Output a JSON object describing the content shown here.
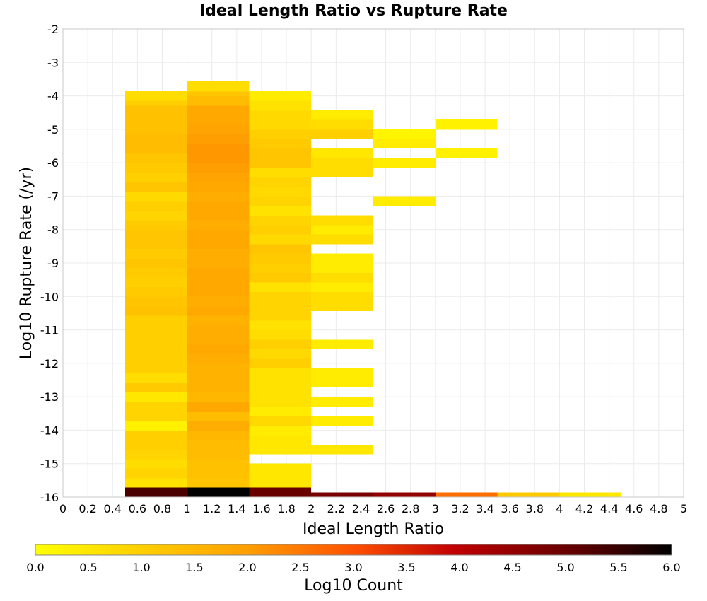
{
  "chart_data": {
    "type": "heatmap",
    "title": "Ideal Length Ratio vs Rupture Rate",
    "xlabel": "Ideal Length Ratio",
    "ylabel": "Log10 Rupture Rate (/yr)",
    "xlim": [
      0,
      5
    ],
    "ylim": [
      -16,
      -2
    ],
    "x_bin_width": 0.5,
    "y_bin_height": 0.2857,
    "x_ticks": [
      "0",
      "0.2",
      "0.4",
      "0.6",
      "0.8",
      "1",
      "1.2",
      "1.4",
      "1.6",
      "1.8",
      "2",
      "2.2",
      "2.4",
      "2.6",
      "2.8",
      "3",
      "3.2",
      "3.4",
      "3.6",
      "3.8",
      "4",
      "4.2",
      "4.4",
      "4.6",
      "4.8",
      "5"
    ],
    "y_ticks": [
      "-2",
      "-3",
      "-4",
      "-5",
      "-6",
      "-7",
      "-8",
      "-9",
      "-10",
      "-11",
      "-12",
      "-13",
      "-14",
      "-15",
      "-16"
    ],
    "grid": true,
    "colorbar": {
      "label": "Log10 Count",
      "min": 0.0,
      "max": 6.0,
      "ticks": [
        "0.0",
        "0.5",
        "1.0",
        "1.5",
        "2.0",
        "2.5",
        "3.0",
        "3.5",
        "4.0",
        "4.5",
        "5.0",
        "5.5",
        "6.0"
      ],
      "colormap": "heat",
      "stops": [
        [
          0.0,
          "#ffff00"
        ],
        [
          0.33,
          "#ffa000"
        ],
        [
          0.5,
          "#ff5000"
        ],
        [
          0.66,
          "#c00000"
        ],
        [
          0.85,
          "#600000"
        ],
        [
          1.0,
          "#000000"
        ]
      ]
    },
    "columns": [
      {
        "x": 0.5,
        "cells": [
          [
            -16,
            -15.71,
            5.3
          ],
          [
            -15.71,
            -15.43,
            0.6
          ],
          [
            -15.43,
            -15.14,
            0.9
          ],
          [
            -15.14,
            -14.86,
            0.7
          ],
          [
            -14.86,
            -14.57,
            0.9
          ],
          [
            -14.57,
            -14.29,
            1.0
          ],
          [
            -14.29,
            -14.0,
            1.0
          ],
          [
            -14.0,
            -13.71,
            0.3
          ],
          [
            -13.71,
            -13.43,
            0.9
          ],
          [
            -13.43,
            -13.14,
            0.9
          ],
          [
            -13.14,
            -12.86,
            0.5
          ],
          [
            -12.86,
            -12.57,
            1.1
          ],
          [
            -12.57,
            -12.29,
            0.7
          ],
          [
            -12.29,
            -12.0,
            1.0
          ],
          [
            -12.0,
            -11.71,
            1.0
          ],
          [
            -11.71,
            -11.43,
            1.0
          ],
          [
            -11.43,
            -11.14,
            1.0
          ],
          [
            -11.14,
            -10.86,
            1.0
          ],
          [
            -10.86,
            -10.57,
            1.0
          ],
          [
            -10.57,
            -10.29,
            1.3
          ],
          [
            -10.29,
            -10.0,
            1.2
          ],
          [
            -10.0,
            -9.71,
            1.1
          ],
          [
            -9.71,
            -9.43,
            1.0
          ],
          [
            -9.43,
            -9.14,
            1.1
          ],
          [
            -9.14,
            -8.86,
            1.2
          ],
          [
            -8.86,
            -8.57,
            1.1
          ],
          [
            -8.57,
            -8.29,
            1.2
          ],
          [
            -8.29,
            -8.0,
            1.2
          ],
          [
            -8.0,
            -7.71,
            1.1
          ],
          [
            -7.71,
            -7.43,
            0.9
          ],
          [
            -7.43,
            -7.14,
            1.0
          ],
          [
            -7.14,
            -6.86,
            0.8
          ],
          [
            -6.86,
            -6.57,
            1.2
          ],
          [
            -6.57,
            -6.29,
            1.0
          ],
          [
            -6.29,
            -6.0,
            1.1
          ],
          [
            -6.0,
            -5.71,
            1.2
          ],
          [
            -5.71,
            -5.43,
            1.4
          ],
          [
            -5.43,
            -5.14,
            1.4
          ],
          [
            -5.14,
            -4.86,
            1.3
          ],
          [
            -4.86,
            -4.57,
            1.3
          ],
          [
            -4.57,
            -4.29,
            1.3
          ],
          [
            -4.29,
            -4.14,
            1.0
          ],
          [
            -4.14,
            -3.86,
            0.7
          ]
        ]
      },
      {
        "x": 1.0,
        "cells": [
          [
            -16,
            -15.71,
            6.0
          ],
          [
            -15.71,
            -15.43,
            1.2
          ],
          [
            -15.43,
            -15.14,
            1.3
          ],
          [
            -15.14,
            -14.86,
            1.3
          ],
          [
            -14.86,
            -14.57,
            1.4
          ],
          [
            -14.57,
            -14.29,
            1.4
          ],
          [
            -14.29,
            -14.0,
            1.5
          ],
          [
            -14.0,
            -13.71,
            1.7
          ],
          [
            -13.71,
            -13.43,
            1.4
          ],
          [
            -13.43,
            -13.14,
            1.8
          ],
          [
            -13.14,
            -12.86,
            1.5
          ],
          [
            -12.86,
            -12.57,
            1.6
          ],
          [
            -12.57,
            -12.29,
            1.6
          ],
          [
            -12.29,
            -12.0,
            1.6
          ],
          [
            -12.0,
            -11.71,
            1.7
          ],
          [
            -11.71,
            -11.43,
            1.8
          ],
          [
            -11.43,
            -11.14,
            1.7
          ],
          [
            -11.14,
            -10.86,
            1.7
          ],
          [
            -10.86,
            -10.57,
            1.6
          ],
          [
            -10.57,
            -10.29,
            1.8
          ],
          [
            -10.29,
            -10.0,
            1.7
          ],
          [
            -10.0,
            -9.71,
            1.8
          ],
          [
            -9.71,
            -9.43,
            1.8
          ],
          [
            -9.43,
            -9.14,
            1.8
          ],
          [
            -9.14,
            -8.86,
            1.7
          ],
          [
            -8.86,
            -8.57,
            1.7
          ],
          [
            -8.57,
            -8.29,
            1.8
          ],
          [
            -8.29,
            -8.0,
            1.8
          ],
          [
            -8.0,
            -7.71,
            1.7
          ],
          [
            -7.71,
            -7.43,
            1.8
          ],
          [
            -7.43,
            -7.14,
            1.8
          ],
          [
            -7.14,
            -6.86,
            1.7
          ],
          [
            -6.86,
            -6.57,
            1.8
          ],
          [
            -6.57,
            -6.29,
            1.9
          ],
          [
            -6.29,
            -6.0,
            2.0
          ],
          [
            -6.0,
            -5.71,
            2.1
          ],
          [
            -5.71,
            -5.43,
            2.1
          ],
          [
            -5.43,
            -5.14,
            2.0
          ],
          [
            -5.14,
            -4.86,
            1.9
          ],
          [
            -4.86,
            -4.57,
            1.8
          ],
          [
            -4.57,
            -4.29,
            1.8
          ],
          [
            -4.29,
            -4.0,
            1.4
          ],
          [
            -4.0,
            -3.86,
            1.2
          ],
          [
            -3.86,
            -3.57,
            0.7
          ]
        ]
      },
      {
        "x": 1.5,
        "cells": [
          [
            -16,
            -15.71,
            5.0
          ],
          [
            -15.71,
            -15.0,
            0.5
          ],
          [
            -14.71,
            -14.43,
            0.5
          ],
          [
            -14.43,
            -14.14,
            0.5
          ],
          [
            -14.14,
            -13.86,
            0.4
          ],
          [
            -13.86,
            -13.57,
            0.8
          ],
          [
            -13.57,
            -13.29,
            0.4
          ],
          [
            -13.29,
            -13.0,
            0.6
          ],
          [
            -13.0,
            -12.71,
            0.6
          ],
          [
            -12.71,
            -12.43,
            0.6
          ],
          [
            -12.43,
            -12.14,
            0.6
          ],
          [
            -12.14,
            -11.86,
            1.0
          ],
          [
            -11.86,
            -11.57,
            0.8
          ],
          [
            -11.57,
            -11.29,
            1.0
          ],
          [
            -11.29,
            -11.0,
            0.7
          ],
          [
            -11.0,
            -10.71,
            0.6
          ],
          [
            -10.71,
            -10.43,
            0.9
          ],
          [
            -10.43,
            -10.14,
            0.9
          ],
          [
            -10.14,
            -9.86,
            0.9
          ],
          [
            -9.86,
            -9.57,
            0.6
          ],
          [
            -9.57,
            -9.29,
            1.1
          ],
          [
            -9.29,
            -9.0,
            1.0
          ],
          [
            -9.0,
            -8.71,
            1.1
          ],
          [
            -8.71,
            -8.43,
            1.2
          ],
          [
            -8.43,
            -8.14,
            0.8
          ],
          [
            -8.14,
            -7.86,
            1.0
          ],
          [
            -7.86,
            -7.57,
            0.9
          ],
          [
            -7.57,
            -7.29,
            0.6
          ],
          [
            -7.29,
            -7.0,
            0.9
          ],
          [
            -7.0,
            -6.71,
            0.8
          ],
          [
            -6.71,
            -6.43,
            0.9
          ],
          [
            -6.43,
            -6.14,
            0.7
          ],
          [
            -6.14,
            -5.86,
            1.2
          ],
          [
            -5.86,
            -5.57,
            1.2
          ],
          [
            -5.57,
            -5.29,
            1.1
          ],
          [
            -5.29,
            -5.0,
            1.0
          ],
          [
            -5.0,
            -4.71,
            0.8
          ],
          [
            -4.71,
            -4.43,
            0.8
          ],
          [
            -4.43,
            -4.14,
            0.6
          ],
          [
            -4.14,
            -3.86,
            0.4
          ]
        ]
      },
      {
        "x": 2.0,
        "cells": [
          [
            -16,
            -15.86,
            4.8
          ],
          [
            -14.71,
            -14.43,
            0.5
          ],
          [
            -13.86,
            -13.57,
            0.4
          ],
          [
            -13.29,
            -13.0,
            0.4
          ],
          [
            -12.71,
            -12.43,
            0.4
          ],
          [
            -12.43,
            -12.14,
            0.4
          ],
          [
            -11.57,
            -11.29,
            0.4
          ],
          [
            -10.43,
            -10.14,
            0.7
          ],
          [
            -10.14,
            -9.86,
            0.7
          ],
          [
            -9.86,
            -9.57,
            0.4
          ],
          [
            -9.57,
            -9.29,
            0.7
          ],
          [
            -9.29,
            -9.0,
            0.4
          ],
          [
            -9.0,
            -8.71,
            0.4
          ],
          [
            -8.43,
            -8.14,
            0.7
          ],
          [
            -8.14,
            -7.86,
            0.4
          ],
          [
            -7.86,
            -7.57,
            0.7
          ],
          [
            -6.43,
            -6.14,
            0.7
          ],
          [
            -6.14,
            -5.86,
            0.7
          ],
          [
            -5.86,
            -5.57,
            0.5
          ],
          [
            -5.29,
            -5.0,
            1.0
          ],
          [
            -5.0,
            -4.71,
            0.7
          ],
          [
            -4.71,
            -4.43,
            0.4
          ]
        ]
      },
      {
        "x": 2.5,
        "cells": [
          [
            -16,
            -15.86,
            4.5
          ],
          [
            -7.29,
            -7.0,
            0.4
          ],
          [
            -6.14,
            -5.86,
            0.4
          ],
          [
            -5.57,
            -5.29,
            0.4
          ],
          [
            -5.29,
            -5.0,
            0.2
          ]
        ]
      },
      {
        "x": 3.0,
        "cells": [
          [
            -16,
            -15.86,
            2.6
          ],
          [
            -5.86,
            -5.57,
            0.3
          ],
          [
            -5.0,
            -4.71,
            0.3
          ]
        ]
      },
      {
        "x": 3.5,
        "cells": [
          [
            -16,
            -15.86,
            1.1
          ]
        ]
      },
      {
        "x": 4.0,
        "cells": [
          [
            -16,
            -15.86,
            0.5
          ]
        ]
      }
    ]
  }
}
